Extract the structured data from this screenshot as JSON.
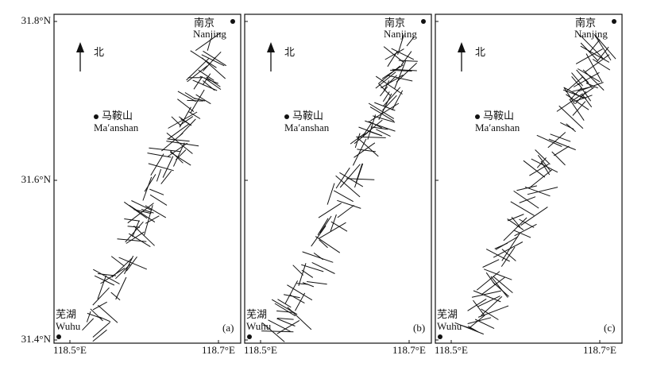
{
  "map": {
    "north_label": "北",
    "y_axis_labels": [
      "31.8°N",
      "31.6°N",
      "31.4°N"
    ],
    "panels": [
      {
        "label": "(a)",
        "x_labels": [
          "118.5°E",
          "118.7°E"
        ],
        "cities": {
          "nanjing": {
            "name_cn": "南京",
            "name_en": "Nanjing"
          },
          "maanshan": {
            "name_cn": "马鞍山",
            "name_en": "Ma′anshan"
          },
          "wuhu": {
            "name_cn": "芜湖",
            "name_en": "Wuhu"
          }
        }
      },
      {
        "label": "(b)",
        "x_labels": [
          "118.5°E",
          "118.7°E"
        ],
        "cities": {
          "nanjing": {
            "name_cn": "南京",
            "name_en": "Nanjing"
          },
          "maanshan": {
            "name_cn": "马鞍山",
            "name_en": "Ma′anshan"
          },
          "wuhu": {
            "name_cn": "芜湖",
            "name_en": "Wuhu"
          }
        }
      },
      {
        "label": "(c)",
        "x_labels": [
          "118.5°E",
          "118.7°E"
        ],
        "cities": {
          "nanjing": {
            "name_cn": "南京",
            "name_en": "Nanjing"
          },
          "maanshan": {
            "name_cn": "马鞍山",
            "name_en": "Ma′anshan"
          },
          "wuhu": {
            "name_cn": "芜湖",
            "name_en": "Wuhu"
          }
        }
      }
    ]
  }
}
